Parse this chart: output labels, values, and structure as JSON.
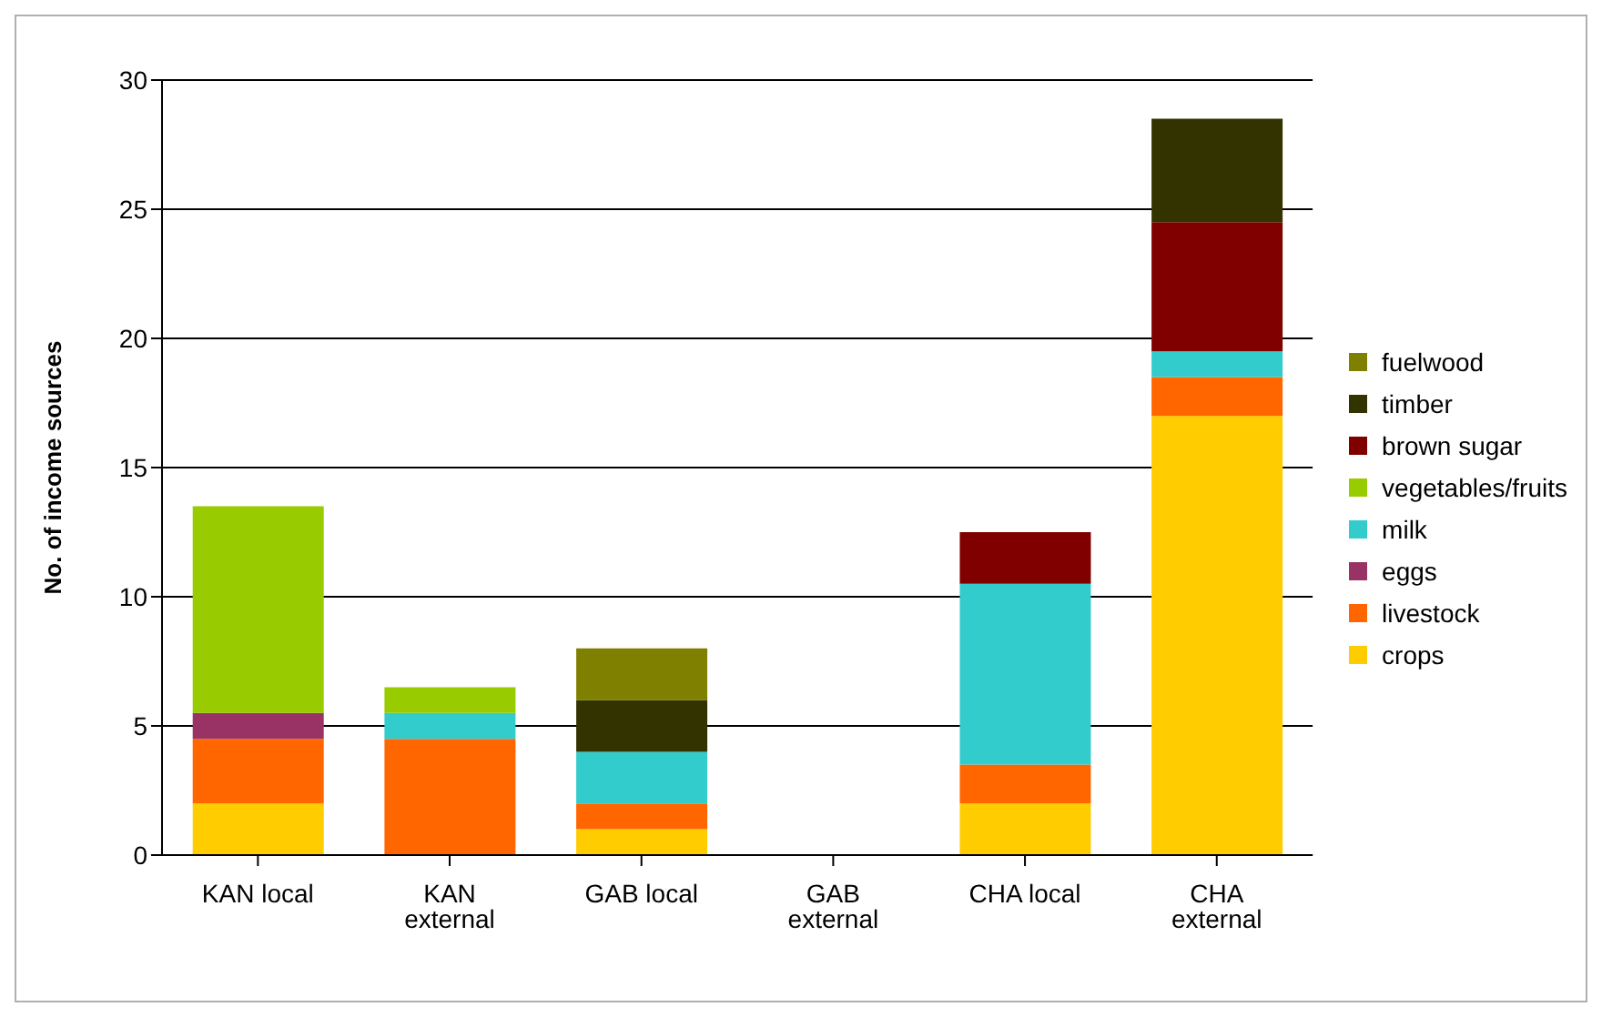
{
  "chart_data": {
    "type": "bar",
    "stacked": true,
    "ylabel": "No. of income sources",
    "categories": [
      "KAN local",
      "KAN external",
      "GAB local",
      "GAB external",
      "CHA local",
      "CHA external"
    ],
    "series": [
      {
        "name": "crops",
        "color": "#ffcc00",
        "values": [
          2,
          0,
          1,
          0,
          2,
          17
        ]
      },
      {
        "name": "livestock",
        "color": "#ff6600",
        "values": [
          2.5,
          4.5,
          1,
          0,
          1.5,
          1.5
        ]
      },
      {
        "name": "eggs",
        "color": "#993366",
        "values": [
          1,
          0,
          0,
          0,
          0,
          0
        ]
      },
      {
        "name": "milk",
        "color": "#33cccc",
        "values": [
          0,
          1,
          2,
          0,
          7,
          1
        ]
      },
      {
        "name": "vegetables/fruits",
        "color": "#99cc00",
        "values": [
          8,
          1,
          0,
          0,
          0,
          0
        ]
      },
      {
        "name": "brown sugar",
        "color": "#800000",
        "values": [
          0,
          0,
          0,
          0,
          2,
          5
        ]
      },
      {
        "name": "timber",
        "color": "#333300",
        "values": [
          0,
          0,
          2,
          0,
          0,
          4
        ]
      },
      {
        "name": "fuelwood",
        "color": "#808000",
        "values": [
          0,
          0,
          2,
          0,
          0,
          0
        ]
      }
    ],
    "ylim": [
      0,
      30
    ],
    "yticks": [
      0,
      5,
      10,
      15,
      20,
      25,
      30
    ],
    "grid": "y",
    "legend": "right"
  }
}
